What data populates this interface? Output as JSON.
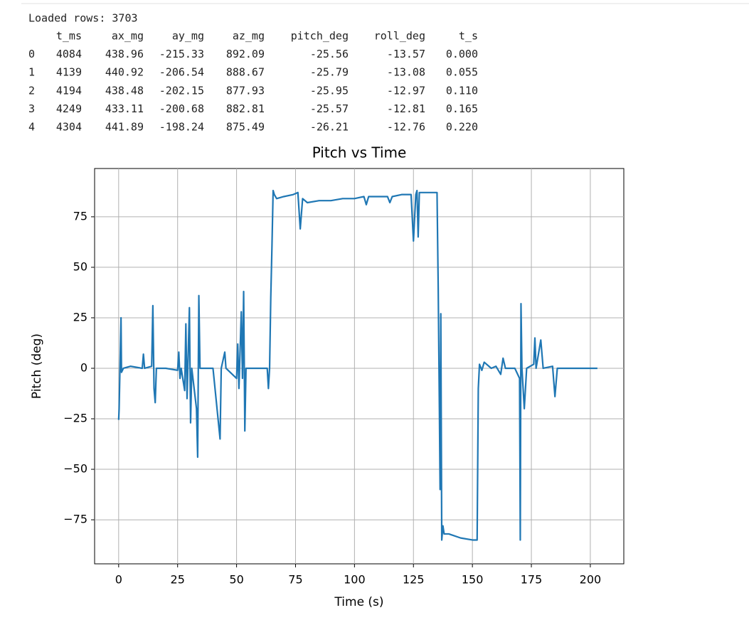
{
  "output": {
    "status": "Loaded rows: 3703",
    "table": {
      "columns": [
        "t_ms",
        "ax_mg",
        "ay_mg",
        "az_mg",
        "pitch_deg",
        "roll_deg",
        "t_s"
      ],
      "index": [
        "0",
        "1",
        "2",
        "3",
        "4"
      ],
      "rows": [
        [
          "4084",
          "438.96",
          "-215.33",
          "892.09",
          "-25.56",
          "-13.57",
          "0.000"
        ],
        [
          "4139",
          "440.92",
          "-206.54",
          "888.67",
          "-25.79",
          "-13.08",
          "0.055"
        ],
        [
          "4194",
          "438.48",
          "-202.15",
          "877.93",
          "-25.95",
          "-12.97",
          "0.110"
        ],
        [
          "4249",
          "433.11",
          "-200.68",
          "882.81",
          "-25.57",
          "-12.81",
          "0.165"
        ],
        [
          "4304",
          "441.89",
          "-198.24",
          "875.49",
          "-26.21",
          "-12.76",
          "0.220"
        ]
      ]
    }
  },
  "chart_data": {
    "type": "line",
    "title": "Pitch vs Time",
    "x_label": "Time (s)",
    "y_label": "Pitch (deg)",
    "color": "#1f77b4",
    "grid": true,
    "xlim": [
      -10.2,
      214.2
    ],
    "ylim": [
      -96.8,
      98.9
    ],
    "xticks": [
      0,
      25,
      50,
      75,
      100,
      125,
      150,
      175,
      200
    ],
    "yticks": [
      {
        "value": -75,
        "label": "−75"
      },
      {
        "value": -50,
        "label": "−50"
      },
      {
        "value": -25,
        "label": "−25"
      },
      0,
      25,
      50,
      75
    ],
    "x": [
      0,
      0.2,
      0.5,
      1,
      1.2,
      2,
      5,
      10,
      10.5,
      11,
      14,
      14.5,
      15,
      15.5,
      16,
      20,
      25,
      25.5,
      26,
      26.5,
      28,
      28.5,
      29,
      30,
      30.5,
      31,
      33,
      33.5,
      34,
      34.5,
      40,
      43,
      43.5,
      45,
      45.5,
      50,
      50.5,
      51,
      52,
      52.5,
      53,
      53.5,
      54,
      60,
      63,
      63.5,
      64,
      64.5,
      65,
      65.5,
      66,
      67,
      70,
      74,
      76,
      77,
      78,
      80,
      85,
      90,
      95,
      100,
      104,
      105,
      106,
      110,
      114,
      115,
      116,
      120,
      124,
      125,
      126,
      126.5,
      127,
      127.5,
      130,
      135,
      135.5,
      136,
      136.3,
      136.6,
      137,
      137.5,
      138,
      140,
      145,
      150,
      152,
      152.5,
      153,
      154,
      155,
      158,
      160,
      162,
      163,
      164,
      168,
      170,
      170.3,
      170.6,
      171,
      172,
      173,
      176,
      176.5,
      177,
      179,
      180,
      184,
      185,
      186,
      190,
      195,
      200,
      203
    ],
    "values": [
      -25.56,
      -20,
      -3,
      25,
      -2,
      0,
      1,
      0,
      7,
      0,
      1,
      31,
      -10,
      -17,
      0,
      0,
      -1,
      8,
      -5,
      0,
      -11,
      22,
      -15,
      30,
      -27,
      0,
      -20,
      -44,
      36,
      0,
      0,
      -35,
      0,
      8,
      0,
      -5,
      12,
      -10,
      28,
      -5,
      38,
      -31,
      0,
      0,
      0,
      -10,
      0,
      35,
      60,
      88,
      86,
      84,
      85,
      86,
      87,
      69,
      84,
      82,
      83,
      83,
      84,
      84,
      85,
      81,
      85,
      85,
      85,
      82,
      85,
      86,
      86,
      63,
      86,
      88,
      65,
      87,
      87,
      87,
      40,
      -20,
      -60,
      27,
      -85,
      -78,
      -82,
      -82,
      -84,
      -85,
      -85,
      -10,
      2,
      -1,
      3,
      0,
      1,
      -3,
      5,
      0,
      0,
      -5,
      -85,
      32,
      0,
      -20,
      0,
      2,
      15,
      0,
      14,
      0,
      1,
      -14,
      0,
      0,
      0,
      0,
      0
    ]
  }
}
